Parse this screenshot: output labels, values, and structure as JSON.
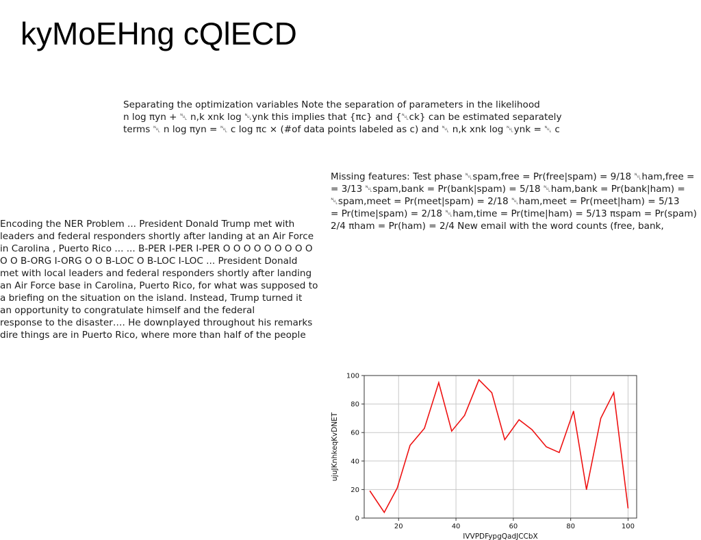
{
  "page": {
    "title": "kyMoEHng cQlECD"
  },
  "paragraphs": {
    "optimization": [
      "Separating the optimization variables Note the separation of parameters in the likelihood",
      "n log πyn + ␀ n,k xnk log ␀ynk this implies that {πc} and {␀ck} can be estimated separately",
      "terms ␀ n log πyn = ␀ c log πc × (#of data points labeled as c) and ␀ n,k xnk log ␀ynk = ␀ c"
    ],
    "missing": [
      "Missing features: Test phase ␀spam,free = Pr(free|spam) = 9/18 ␀ham,free =",
      "= 3/13 ␀spam,bank = Pr(bank|spam) = 5/18 ␀ham,bank = Pr(bank|ham) =",
      "␀spam,meet = Pr(meet|spam) = 2/18 ␀ham,meet = Pr(meet|ham) = 5/13",
      "= Pr(time|spam) = 2/18 ␀ham,time = Pr(time|ham) = 5/13 πspam = Pr(spam)",
      "2/4 πham = Pr(ham) = 2/4 New email with the word counts (free, bank,"
    ],
    "ner": [
      "Encoding the NER Problem ... President Donald Trump met with",
      "leaders and federal responders shortly after landing at an Air Force",
      "in Carolina , Puerto Rico ... ... B-PER I-PER I-PER O O O O O O O O O",
      "O O B-ORG I-ORG O O B-LOC O B-LOC I-LOC ... President Donald",
      "met with local leaders and federal responders shortly after landing",
      "an Air Force base in Carolina, Puerto Rico, for what was supposed to",
      "a briefing on the situation on the island. Instead, Trump turned it",
      "an opportunity to congratulate himself and the federal",
      "response to the disaster…. He downplayed throughout his remarks",
      "dire things are in Puerto Rico, where more than half of the people"
    ]
  },
  "chart_data": {
    "type": "line",
    "title": "",
    "xlabel": "IVVPDFypgQadJCCbX",
    "ylabel": "ujuJKnhkeqKvDNET",
    "xlim": [
      8,
      103
    ],
    "ylim": [
      0,
      100
    ],
    "xticks": [
      20,
      40,
      60,
      80,
      100
    ],
    "yticks": [
      0,
      20,
      40,
      60,
      80,
      100
    ],
    "grid": true,
    "series": [
      {
        "color": "#ee1111",
        "x": [
          10,
          15,
          19.5,
          24,
          29,
          34,
          38.5,
          43,
          48,
          52.5,
          57,
          62,
          66.5,
          71.5,
          76,
          81,
          85.5,
          90.5,
          95,
          100
        ],
        "y": [
          19,
          4,
          21,
          51,
          63,
          95,
          61,
          72,
          97,
          88,
          55,
          69,
          62,
          50,
          46,
          75,
          20,
          70,
          88,
          7
        ]
      }
    ]
  }
}
